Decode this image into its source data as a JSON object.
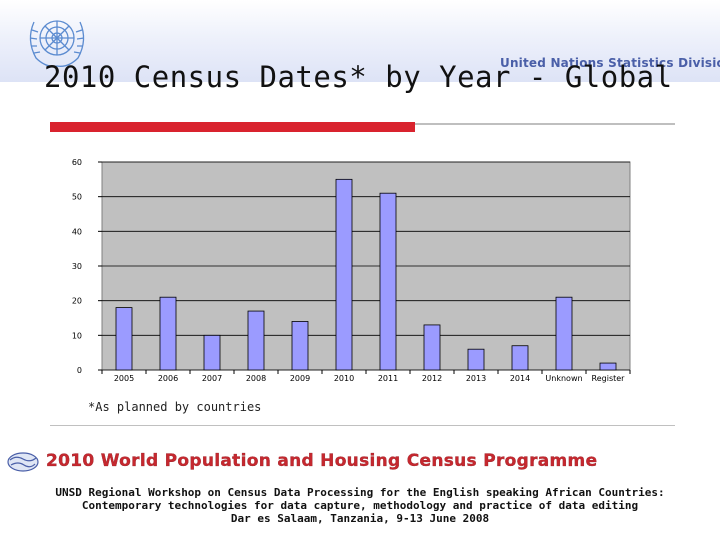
{
  "header": {
    "division": "United Nations Statistics Division",
    "title": "2010 Census Dates* by Year - Global"
  },
  "footnote": "*As planned by countries",
  "banner": {
    "text": "2010 World Population and Housing Census Programme"
  },
  "footer": {
    "line1": "UNSD Regional Workshop on Census Data Processing for the English speaking African Countries:",
    "line2": "Contemporary technologies for data capture, methodology and practice of data editing",
    "line3": "Dar es Salaam, Tanzania, 9-13 June 2008"
  },
  "colors": {
    "bar_fill": "#9b9bff",
    "plot_bg": "#c0c0c0",
    "accent_red": "#d9232e",
    "banner_red": "#c6282f",
    "division_blue": "#4a5fa8"
  },
  "chart_data": {
    "type": "bar",
    "categories": [
      "2005",
      "2006",
      "2007",
      "2008",
      "2009",
      "2010",
      "2011",
      "2012",
      "2013",
      "2014",
      "Unknown",
      "Register"
    ],
    "values": [
      18,
      21,
      10,
      17,
      14,
      55,
      51,
      13,
      6,
      7,
      21,
      2
    ],
    "ylim": [
      0,
      60
    ],
    "yticks": [
      0,
      10,
      20,
      30,
      40,
      50,
      60
    ],
    "grid": true,
    "title": "",
    "xlabel": "",
    "ylabel": ""
  }
}
